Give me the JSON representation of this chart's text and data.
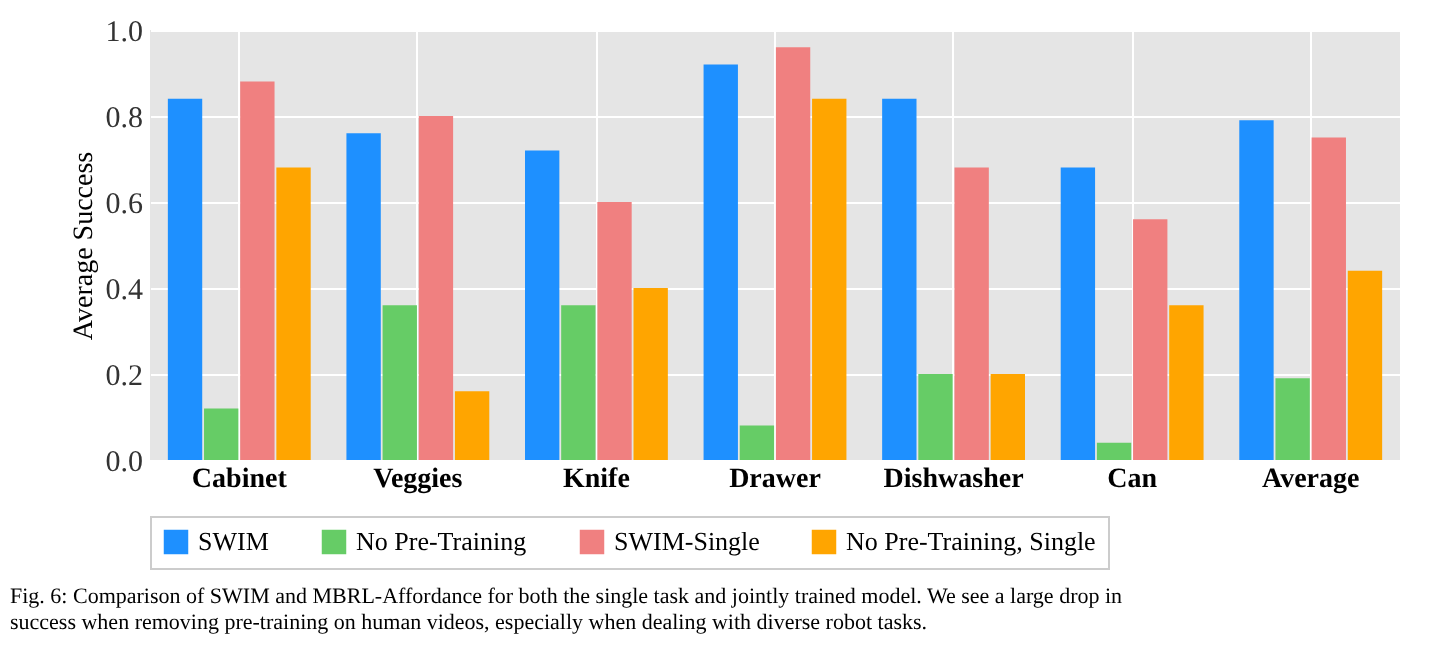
{
  "chart_data": {
    "type": "bar",
    "ylabel": "Average Success",
    "categories": [
      "Cabinet",
      "Veggies",
      "Knife",
      "Drawer",
      "Dishwasher",
      "Can",
      "Average"
    ],
    "series": [
      {
        "name": "SWIM",
        "color": "#1e90ff",
        "values": [
          0.84,
          0.76,
          0.72,
          0.92,
          0.84,
          0.68,
          0.79
        ]
      },
      {
        "name": "No Pre-Training",
        "color": "#66cc66",
        "values": [
          0.12,
          0.36,
          0.36,
          0.08,
          0.2,
          0.04,
          0.19
        ]
      },
      {
        "name": "SWIM-Single",
        "color": "#f08080",
        "values": [
          0.88,
          0.8,
          0.6,
          0.96,
          0.68,
          0.56,
          0.75
        ]
      },
      {
        "name": "No Pre-Training, Single",
        "color": "#ffa500",
        "values": [
          0.68,
          0.16,
          0.4,
          0.84,
          0.2,
          0.36,
          0.44
        ]
      }
    ],
    "ylim": [
      0,
      1
    ],
    "yticks": [
      {
        "value": 0,
        "label": "0.0"
      },
      0.2,
      0.4,
      0.6,
      0.8,
      {
        "value": 1,
        "label": "1.0"
      }
    ],
    "grid": true,
    "legend": "bottom",
    "annotations": [
      "Fig. 6: Comparison of SWIM and MBRL-Affordance for both the single task and jointly trained model. We see a large drop in success when removing pre-training on human videos, especially when dealing with diverse robot tasks."
    ]
  }
}
